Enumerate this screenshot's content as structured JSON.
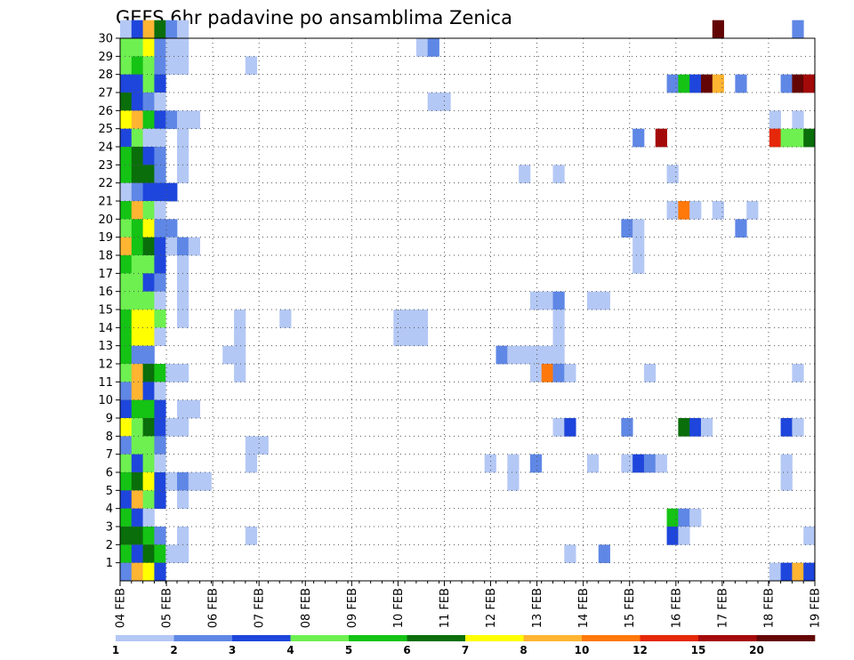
{
  "chart_data": {
    "type": "heatmap",
    "title": "GEFS 6hr padavine po ansamblima Zenica",
    "xlabel": "",
    "ylabel": "",
    "x_tick_labels": [
      "04 FEB",
      "05 FEB",
      "06 FEB",
      "07 FEB",
      "08 FEB",
      "09 FEB",
      "10 FEB",
      "11 FEB",
      "12 FEB",
      "13 FEB",
      "14 FEB",
      "15 FEB",
      "16 FEB",
      "17 FEB",
      "18 FEB",
      "19 FEB"
    ],
    "x_range_days": [
      0,
      15
    ],
    "y_tick_labels": [
      "1",
      "2",
      "3",
      "4",
      "5",
      "6",
      "7",
      "8",
      "9",
      "10",
      "11",
      "12",
      "13",
      "14",
      "15",
      "16",
      "17",
      "18",
      "19",
      "20",
      "21",
      "22",
      "23",
      "24",
      "25",
      "26",
      "27",
      "28",
      "29",
      "30"
    ],
    "y_range": [
      0,
      30
    ],
    "grid": true,
    "colorbar": {
      "position": "bottom",
      "levels": [
        "1",
        "2",
        "3",
        "4",
        "5",
        "6",
        "7",
        "8",
        "10",
        "12",
        "15",
        "20"
      ],
      "colors": [
        "#b4c8f5",
        "#5f87e6",
        "#1e46dc",
        "#6ef050",
        "#14c314",
        "#0a6e0a",
        "#ffff00",
        "#ffb432",
        "#ff780a",
        "#e6280a",
        "#a50a0a",
        "#640505"
      ]
    },
    "cells": [
      {
        "ens": 30,
        "t": 0,
        "v": 1.5
      },
      {
        "ens": 30,
        "t": 1,
        "v": 3.5
      },
      {
        "ens": 30,
        "t": 2,
        "v": 8.5
      },
      {
        "ens": 30,
        "t": 3,
        "v": 6.5
      },
      {
        "ens": 30,
        "t": 4,
        "v": 2.5
      },
      {
        "ens": 30,
        "t": 5,
        "v": 1.5
      },
      {
        "ens": 30,
        "t": 52,
        "v": 25
      },
      {
        "ens": 30,
        "t": 59,
        "v": 2.5
      },
      {
        "ens": 29,
        "t": 0,
        "v": 4.5
      },
      {
        "ens": 29,
        "t": 1,
        "v": 4.5
      },
      {
        "ens": 29,
        "t": 2,
        "v": 7.5
      },
      {
        "ens": 29,
        "t": 3,
        "v": 2.5
      },
      {
        "ens": 29,
        "t": 4,
        "v": 1.5
      },
      {
        "ens": 29,
        "t": 5,
        "v": 1.5
      },
      {
        "ens": 29,
        "t": 26,
        "v": 1.5
      },
      {
        "ens": 29,
        "t": 27,
        "v": 2.5
      },
      {
        "ens": 28,
        "t": 0,
        "v": 4.5
      },
      {
        "ens": 28,
        "t": 1,
        "v": 5.5
      },
      {
        "ens": 28,
        "t": 2,
        "v": 4.5
      },
      {
        "ens": 28,
        "t": 3,
        "v": 2.5
      },
      {
        "ens": 28,
        "t": 4,
        "v": 1.5
      },
      {
        "ens": 28,
        "t": 5,
        "v": 1.5
      },
      {
        "ens": 28,
        "t": 11,
        "v": 1.5
      },
      {
        "ens": 27,
        "t": 0,
        "v": 3.5
      },
      {
        "ens": 27,
        "t": 1,
        "v": 3.5
      },
      {
        "ens": 27,
        "t": 2,
        "v": 4.5
      },
      {
        "ens": 27,
        "t": 3,
        "v": 3.5
      },
      {
        "ens": 27,
        "t": 48,
        "v": 2.5
      },
      {
        "ens": 27,
        "t": 49,
        "v": 5.5
      },
      {
        "ens": 27,
        "t": 50,
        "v": 3.5
      },
      {
        "ens": 27,
        "t": 51,
        "v": 20
      },
      {
        "ens": 27,
        "t": 52,
        "v": 9
      },
      {
        "ens": 27,
        "t": 54,
        "v": 2.5
      },
      {
        "ens": 27,
        "t": 58,
        "v": 2.5
      },
      {
        "ens": 27,
        "t": 59,
        "v": 25
      },
      {
        "ens": 27,
        "t": 60,
        "v": 15
      },
      {
        "ens": 26,
        "t": 0,
        "v": 6.5
      },
      {
        "ens": 26,
        "t": 1,
        "v": 3.5
      },
      {
        "ens": 26,
        "t": 2,
        "v": 2.5
      },
      {
        "ens": 26,
        "t": 3,
        "v": 1.5
      },
      {
        "ens": 26,
        "t": 27,
        "v": 1.5
      },
      {
        "ens": 26,
        "t": 28,
        "v": 1.5
      },
      {
        "ens": 25,
        "t": 0,
        "v": 7.5
      },
      {
        "ens": 25,
        "t": 1,
        "v": 9
      },
      {
        "ens": 25,
        "t": 2,
        "v": 5.5
      },
      {
        "ens": 25,
        "t": 3,
        "v": 3.5
      },
      {
        "ens": 25,
        "t": 4,
        "v": 2.5
      },
      {
        "ens": 25,
        "t": 5,
        "v": 1.5
      },
      {
        "ens": 25,
        "t": 6,
        "v": 1.5
      },
      {
        "ens": 25,
        "t": 57,
        "v": 1.5
      },
      {
        "ens": 25,
        "t": 59,
        "v": 1.5
      },
      {
        "ens": 24,
        "t": 0,
        "v": 3.5
      },
      {
        "ens": 24,
        "t": 1,
        "v": 4.5
      },
      {
        "ens": 24,
        "t": 2,
        "v": 1.5
      },
      {
        "ens": 24,
        "t": 3,
        "v": 1.5
      },
      {
        "ens": 24,
        "t": 5,
        "v": 1.5
      },
      {
        "ens": 24,
        "t": 45,
        "v": 2.5
      },
      {
        "ens": 24,
        "t": 47,
        "v": 18
      },
      {
        "ens": 24,
        "t": 57,
        "v": 14
      },
      {
        "ens": 24,
        "t": 58,
        "v": 4.5
      },
      {
        "ens": 24,
        "t": 59,
        "v": 4.5
      },
      {
        "ens": 24,
        "t": 60,
        "v": 6.5
      },
      {
        "ens": 23,
        "t": 0,
        "v": 5.5
      },
      {
        "ens": 23,
        "t": 1,
        "v": 6.5
      },
      {
        "ens": 23,
        "t": 2,
        "v": 3.5
      },
      {
        "ens": 23,
        "t": 3,
        "v": 2.5
      },
      {
        "ens": 23,
        "t": 5,
        "v": 1.5
      },
      {
        "ens": 22,
        "t": 0,
        "v": 5.5
      },
      {
        "ens": 22,
        "t": 1,
        "v": 6.5
      },
      {
        "ens": 22,
        "t": 2,
        "v": 6.5
      },
      {
        "ens": 22,
        "t": 3,
        "v": 2.5
      },
      {
        "ens": 22,
        "t": 5,
        "v": 1.5
      },
      {
        "ens": 22,
        "t": 35,
        "v": 1.5
      },
      {
        "ens": 22,
        "t": 38,
        "v": 1.5
      },
      {
        "ens": 22,
        "t": 48,
        "v": 1.5
      },
      {
        "ens": 21,
        "t": 0,
        "v": 1.5
      },
      {
        "ens": 21,
        "t": 1,
        "v": 2.5
      },
      {
        "ens": 21,
        "t": 2,
        "v": 3.5
      },
      {
        "ens": 21,
        "t": 3,
        "v": 3.5
      },
      {
        "ens": 21,
        "t": 4,
        "v": 3.5
      },
      {
        "ens": 20,
        "t": 0,
        "v": 5.5
      },
      {
        "ens": 20,
        "t": 1,
        "v": 9
      },
      {
        "ens": 20,
        "t": 2,
        "v": 4.5
      },
      {
        "ens": 20,
        "t": 3,
        "v": 1.5
      },
      {
        "ens": 20,
        "t": 48,
        "v": 1.5
      },
      {
        "ens": 20,
        "t": 49,
        "v": 11
      },
      {
        "ens": 20,
        "t": 50,
        "v": 1.5
      },
      {
        "ens": 20,
        "t": 52,
        "v": 1.5
      },
      {
        "ens": 20,
        "t": 55,
        "v": 1.5
      },
      {
        "ens": 19,
        "t": 0,
        "v": 4.5
      },
      {
        "ens": 19,
        "t": 1,
        "v": 5.5
      },
      {
        "ens": 19,
        "t": 2,
        "v": 7.5
      },
      {
        "ens": 19,
        "t": 3,
        "v": 2.5
      },
      {
        "ens": 19,
        "t": 4,
        "v": 2.5
      },
      {
        "ens": 19,
        "t": 44,
        "v": 2.5
      },
      {
        "ens": 19,
        "t": 45,
        "v": 1.5
      },
      {
        "ens": 19,
        "t": 54,
        "v": 2.5
      },
      {
        "ens": 18,
        "t": 0,
        "v": 9
      },
      {
        "ens": 18,
        "t": 1,
        "v": 5.5
      },
      {
        "ens": 18,
        "t": 2,
        "v": 6.5
      },
      {
        "ens": 18,
        "t": 3,
        "v": 3.5
      },
      {
        "ens": 18,
        "t": 4,
        "v": 1.5
      },
      {
        "ens": 18,
        "t": 5,
        "v": 2.5
      },
      {
        "ens": 18,
        "t": 6,
        "v": 1.5
      },
      {
        "ens": 18,
        "t": 45,
        "v": 1.5
      },
      {
        "ens": 17,
        "t": 0,
        "v": 5.5
      },
      {
        "ens": 17,
        "t": 1,
        "v": 4.5
      },
      {
        "ens": 17,
        "t": 2,
        "v": 4.5
      },
      {
        "ens": 17,
        "t": 3,
        "v": 3.5
      },
      {
        "ens": 17,
        "t": 5,
        "v": 1.5
      },
      {
        "ens": 17,
        "t": 45,
        "v": 1.5
      },
      {
        "ens": 16,
        "t": 0,
        "v": 4.5
      },
      {
        "ens": 16,
        "t": 1,
        "v": 4.5
      },
      {
        "ens": 16,
        "t": 2,
        "v": 3.5
      },
      {
        "ens": 16,
        "t": 3,
        "v": 2.5
      },
      {
        "ens": 16,
        "t": 5,
        "v": 1.5
      },
      {
        "ens": 15,
        "t": 0,
        "v": 4.5
      },
      {
        "ens": 15,
        "t": 1,
        "v": 4.5
      },
      {
        "ens": 15,
        "t": 2,
        "v": 4.5
      },
      {
        "ens": 15,
        "t": 3,
        "v": 1.5
      },
      {
        "ens": 15,
        "t": 5,
        "v": 1.5
      },
      {
        "ens": 15,
        "t": 36,
        "v": 1.5
      },
      {
        "ens": 15,
        "t": 37,
        "v": 1.5
      },
      {
        "ens": 15,
        "t": 38,
        "v": 2.5
      },
      {
        "ens": 15,
        "t": 41,
        "v": 1.5
      },
      {
        "ens": 15,
        "t": 42,
        "v": 1.5
      },
      {
        "ens": 14,
        "t": 0,
        "v": 5.5
      },
      {
        "ens": 14,
        "t": 1,
        "v": 7.5
      },
      {
        "ens": 14,
        "t": 2,
        "v": 7.5
      },
      {
        "ens": 14,
        "t": 3,
        "v": 4.5
      },
      {
        "ens": 14,
        "t": 5,
        "v": 1.5
      },
      {
        "ens": 14,
        "t": 10,
        "v": 1.5
      },
      {
        "ens": 14,
        "t": 14,
        "v": 1.5
      },
      {
        "ens": 14,
        "t": 24,
        "v": 1.5
      },
      {
        "ens": 14,
        "t": 25,
        "v": 1.5
      },
      {
        "ens": 14,
        "t": 26,
        "v": 1.5
      },
      {
        "ens": 14,
        "t": 38,
        "v": 1.5
      },
      {
        "ens": 13,
        "t": 0,
        "v": 5.5
      },
      {
        "ens": 13,
        "t": 1,
        "v": 7.5
      },
      {
        "ens": 13,
        "t": 2,
        "v": 7.5
      },
      {
        "ens": 13,
        "t": 3,
        "v": 1.5
      },
      {
        "ens": 13,
        "t": 10,
        "v": 1.5
      },
      {
        "ens": 13,
        "t": 24,
        "v": 1.5
      },
      {
        "ens": 13,
        "t": 25,
        "v": 1.5
      },
      {
        "ens": 13,
        "t": 26,
        "v": 1.5
      },
      {
        "ens": 13,
        "t": 38,
        "v": 1.5
      },
      {
        "ens": 12,
        "t": 0,
        "v": 5.5
      },
      {
        "ens": 12,
        "t": 1,
        "v": 2.5
      },
      {
        "ens": 12,
        "t": 2,
        "v": 2.5
      },
      {
        "ens": 12,
        "t": 9,
        "v": 1.5
      },
      {
        "ens": 12,
        "t": 10,
        "v": 1.5
      },
      {
        "ens": 12,
        "t": 33,
        "v": 2.5
      },
      {
        "ens": 12,
        "t": 34,
        "v": 1.5
      },
      {
        "ens": 12,
        "t": 35,
        "v": 1.5
      },
      {
        "ens": 12,
        "t": 36,
        "v": 1.5
      },
      {
        "ens": 12,
        "t": 37,
        "v": 1.5
      },
      {
        "ens": 12,
        "t": 38,
        "v": 1.5
      },
      {
        "ens": 11,
        "t": 0,
        "v": 4.5
      },
      {
        "ens": 11,
        "t": 1,
        "v": 9
      },
      {
        "ens": 11,
        "t": 2,
        "v": 6.5
      },
      {
        "ens": 11,
        "t": 3,
        "v": 5.5
      },
      {
        "ens": 11,
        "t": 4,
        "v": 1.5
      },
      {
        "ens": 11,
        "t": 5,
        "v": 1.5
      },
      {
        "ens": 11,
        "t": 10,
        "v": 1.5
      },
      {
        "ens": 11,
        "t": 36,
        "v": 1.5
      },
      {
        "ens": 11,
        "t": 37,
        "v": 11
      },
      {
        "ens": 11,
        "t": 38,
        "v": 2.5
      },
      {
        "ens": 11,
        "t": 39,
        "v": 1.5
      },
      {
        "ens": 11,
        "t": 46,
        "v": 1.5
      },
      {
        "ens": 11,
        "t": 59,
        "v": 1.5
      },
      {
        "ens": 10,
        "t": 0,
        "v": 2.5
      },
      {
        "ens": 10,
        "t": 1,
        "v": 9
      },
      {
        "ens": 10,
        "t": 2,
        "v": 3.5
      },
      {
        "ens": 10,
        "t": 3,
        "v": 1.5
      },
      {
        "ens": 9,
        "t": 0,
        "v": 3.5
      },
      {
        "ens": 9,
        "t": 1,
        "v": 5.5
      },
      {
        "ens": 9,
        "t": 2,
        "v": 5.5
      },
      {
        "ens": 9,
        "t": 3,
        "v": 3.5
      },
      {
        "ens": 9,
        "t": 5,
        "v": 1.5
      },
      {
        "ens": 9,
        "t": 6,
        "v": 1.5
      },
      {
        "ens": 8,
        "t": 0,
        "v": 7.5
      },
      {
        "ens": 8,
        "t": 1,
        "v": 4.5
      },
      {
        "ens": 8,
        "t": 2,
        "v": 6.5
      },
      {
        "ens": 8,
        "t": 3,
        "v": 3.5
      },
      {
        "ens": 8,
        "t": 4,
        "v": 1.5
      },
      {
        "ens": 8,
        "t": 5,
        "v": 1.5
      },
      {
        "ens": 8,
        "t": 38,
        "v": 1.5
      },
      {
        "ens": 8,
        "t": 39,
        "v": 3.5
      },
      {
        "ens": 8,
        "t": 44,
        "v": 2.5
      },
      {
        "ens": 8,
        "t": 49,
        "v": 6.5
      },
      {
        "ens": 8,
        "t": 50,
        "v": 3.5
      },
      {
        "ens": 8,
        "t": 51,
        "v": 1.5
      },
      {
        "ens": 8,
        "t": 58,
        "v": 3.5
      },
      {
        "ens": 8,
        "t": 59,
        "v": 1.5
      },
      {
        "ens": 7,
        "t": 0,
        "v": 2.5
      },
      {
        "ens": 7,
        "t": 1,
        "v": 4.5
      },
      {
        "ens": 7,
        "t": 2,
        "v": 4.5
      },
      {
        "ens": 7,
        "t": 3,
        "v": 2.5
      },
      {
        "ens": 7,
        "t": 11,
        "v": 1.5
      },
      {
        "ens": 7,
        "t": 12,
        "v": 1.5
      },
      {
        "ens": 6,
        "t": 0,
        "v": 4.5
      },
      {
        "ens": 6,
        "t": 1,
        "v": 3.5
      },
      {
        "ens": 6,
        "t": 2,
        "v": 4.5
      },
      {
        "ens": 6,
        "t": 3,
        "v": 1.5
      },
      {
        "ens": 6,
        "t": 11,
        "v": 1.5
      },
      {
        "ens": 6,
        "t": 32,
        "v": 1.5
      },
      {
        "ens": 6,
        "t": 34,
        "v": 1.5
      },
      {
        "ens": 6,
        "t": 36,
        "v": 2.5
      },
      {
        "ens": 6,
        "t": 41,
        "v": 1.5
      },
      {
        "ens": 6,
        "t": 44,
        "v": 1.5
      },
      {
        "ens": 6,
        "t": 45,
        "v": 3.5
      },
      {
        "ens": 6,
        "t": 46,
        "v": 2.5
      },
      {
        "ens": 6,
        "t": 47,
        "v": 1.5
      },
      {
        "ens": 6,
        "t": 58,
        "v": 1.5
      },
      {
        "ens": 5,
        "t": 0,
        "v": 5.5
      },
      {
        "ens": 5,
        "t": 1,
        "v": 6.5
      },
      {
        "ens": 5,
        "t": 2,
        "v": 7.5
      },
      {
        "ens": 5,
        "t": 3,
        "v": 3.5
      },
      {
        "ens": 5,
        "t": 4,
        "v": 1.5
      },
      {
        "ens": 5,
        "t": 5,
        "v": 2.5
      },
      {
        "ens": 5,
        "t": 6,
        "v": 1.5
      },
      {
        "ens": 5,
        "t": 7,
        "v": 1.5
      },
      {
        "ens": 5,
        "t": 34,
        "v": 1.5
      },
      {
        "ens": 5,
        "t": 58,
        "v": 1.5
      },
      {
        "ens": 4,
        "t": 0,
        "v": 3.5
      },
      {
        "ens": 4,
        "t": 1,
        "v": 9
      },
      {
        "ens": 4,
        "t": 2,
        "v": 4.5
      },
      {
        "ens": 4,
        "t": 3,
        "v": 3.5
      },
      {
        "ens": 4,
        "t": 5,
        "v": 1.5
      },
      {
        "ens": 3,
        "t": 0,
        "v": 5.5
      },
      {
        "ens": 3,
        "t": 1,
        "v": 3.5
      },
      {
        "ens": 3,
        "t": 2,
        "v": 1.5
      },
      {
        "ens": 3,
        "t": 48,
        "v": 5.5
      },
      {
        "ens": 3,
        "t": 49,
        "v": 2.5
      },
      {
        "ens": 3,
        "t": 50,
        "v": 1.5
      },
      {
        "ens": 2,
        "t": 0,
        "v": 6.5
      },
      {
        "ens": 2,
        "t": 1,
        "v": 6.5
      },
      {
        "ens": 2,
        "t": 2,
        "v": 5.5
      },
      {
        "ens": 2,
        "t": 3,
        "v": 2.5
      },
      {
        "ens": 2,
        "t": 5,
        "v": 1.5
      },
      {
        "ens": 2,
        "t": 11,
        "v": 1.5
      },
      {
        "ens": 2,
        "t": 48,
        "v": 3.5
      },
      {
        "ens": 2,
        "t": 49,
        "v": 1.5
      },
      {
        "ens": 2,
        "t": 60,
        "v": 1.5
      },
      {
        "ens": 1,
        "t": 0,
        "v": 5.5
      },
      {
        "ens": 1,
        "t": 1,
        "v": 3.5
      },
      {
        "ens": 1,
        "t": 2,
        "v": 6.5
      },
      {
        "ens": 1,
        "t": 3,
        "v": 5.5
      },
      {
        "ens": 1,
        "t": 4,
        "v": 1.5
      },
      {
        "ens": 1,
        "t": 5,
        "v": 1.5
      },
      {
        "ens": 1,
        "t": 39,
        "v": 1.5
      },
      {
        "ens": 1,
        "t": 42,
        "v": 2.5
      },
      {
        "ens": 0,
        "t": 0,
        "v": 2.5
      },
      {
        "ens": 0,
        "t": 1,
        "v": 9
      },
      {
        "ens": 0,
        "t": 2,
        "v": 7.5
      },
      {
        "ens": 0,
        "t": 3,
        "v": 3.5
      },
      {
        "ens": 0,
        "t": 57,
        "v": 1.5
      },
      {
        "ens": 0,
        "t": 58,
        "v": 3.5
      },
      {
        "ens": 0,
        "t": 59,
        "v": 9
      },
      {
        "ens": 0,
        "t": 60,
        "v": 3.5
      }
    ]
  }
}
